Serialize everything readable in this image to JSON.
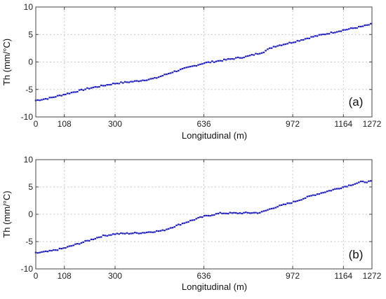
{
  "chart_data": [
    {
      "type": "scatter",
      "panel_label": "(a)",
      "xlabel": "Longitudinal (m)",
      "ylabel": "Th (mm/°C)",
      "xlim": [
        0,
        1272
      ],
      "ylim": [
        -10,
        10
      ],
      "x_ticks": [
        0,
        108,
        300,
        636,
        972,
        1164,
        1272
      ],
      "y_ticks": [
        10,
        5,
        0,
        -5,
        -10
      ],
      "grid": true,
      "marker_color": "#1f1fbf",
      "trend": [
        [
          0,
          -7.0
        ],
        [
          50,
          -6.6
        ],
        [
          108,
          -5.9
        ],
        [
          200,
          -4.8
        ],
        [
          300,
          -3.9
        ],
        [
          380,
          -3.5
        ],
        [
          450,
          -3.0
        ],
        [
          520,
          -1.8
        ],
        [
          636,
          -0.2
        ],
        [
          720,
          0.4
        ],
        [
          800,
          1.0
        ],
        [
          860,
          1.8
        ],
        [
          900,
          2.8
        ],
        [
          972,
          3.6
        ],
        [
          1050,
          4.6
        ],
        [
          1164,
          5.8
        ],
        [
          1230,
          6.4
        ],
        [
          1272,
          6.9
        ]
      ]
    },
    {
      "type": "scatter",
      "panel_label": "(b)",
      "xlabel": "Longitudinal (m)",
      "ylabel": "Th (mm/°C)",
      "xlim": [
        0,
        1272
      ],
      "ylim": [
        -10,
        10
      ],
      "x_ticks": [
        0,
        108,
        300,
        636,
        972,
        1164,
        1272
      ],
      "y_ticks": [
        10,
        5,
        0,
        -5,
        -10
      ],
      "grid": true,
      "marker_color": "#1f1fbf",
      "trend": [
        [
          0,
          -7.1
        ],
        [
          50,
          -6.8
        ],
        [
          108,
          -6.2
        ],
        [
          200,
          -4.8
        ],
        [
          250,
          -4.0
        ],
        [
          300,
          -3.6
        ],
        [
          400,
          -3.4
        ],
        [
          480,
          -3.0
        ],
        [
          560,
          -1.6
        ],
        [
          636,
          -0.4
        ],
        [
          700,
          0.2
        ],
        [
          760,
          0.2
        ],
        [
          850,
          0.3
        ],
        [
          900,
          1.2
        ],
        [
          972,
          2.2
        ],
        [
          1050,
          3.5
        ],
        [
          1164,
          5.0
        ],
        [
          1230,
          5.9
        ],
        [
          1272,
          6.0
        ]
      ]
    }
  ]
}
